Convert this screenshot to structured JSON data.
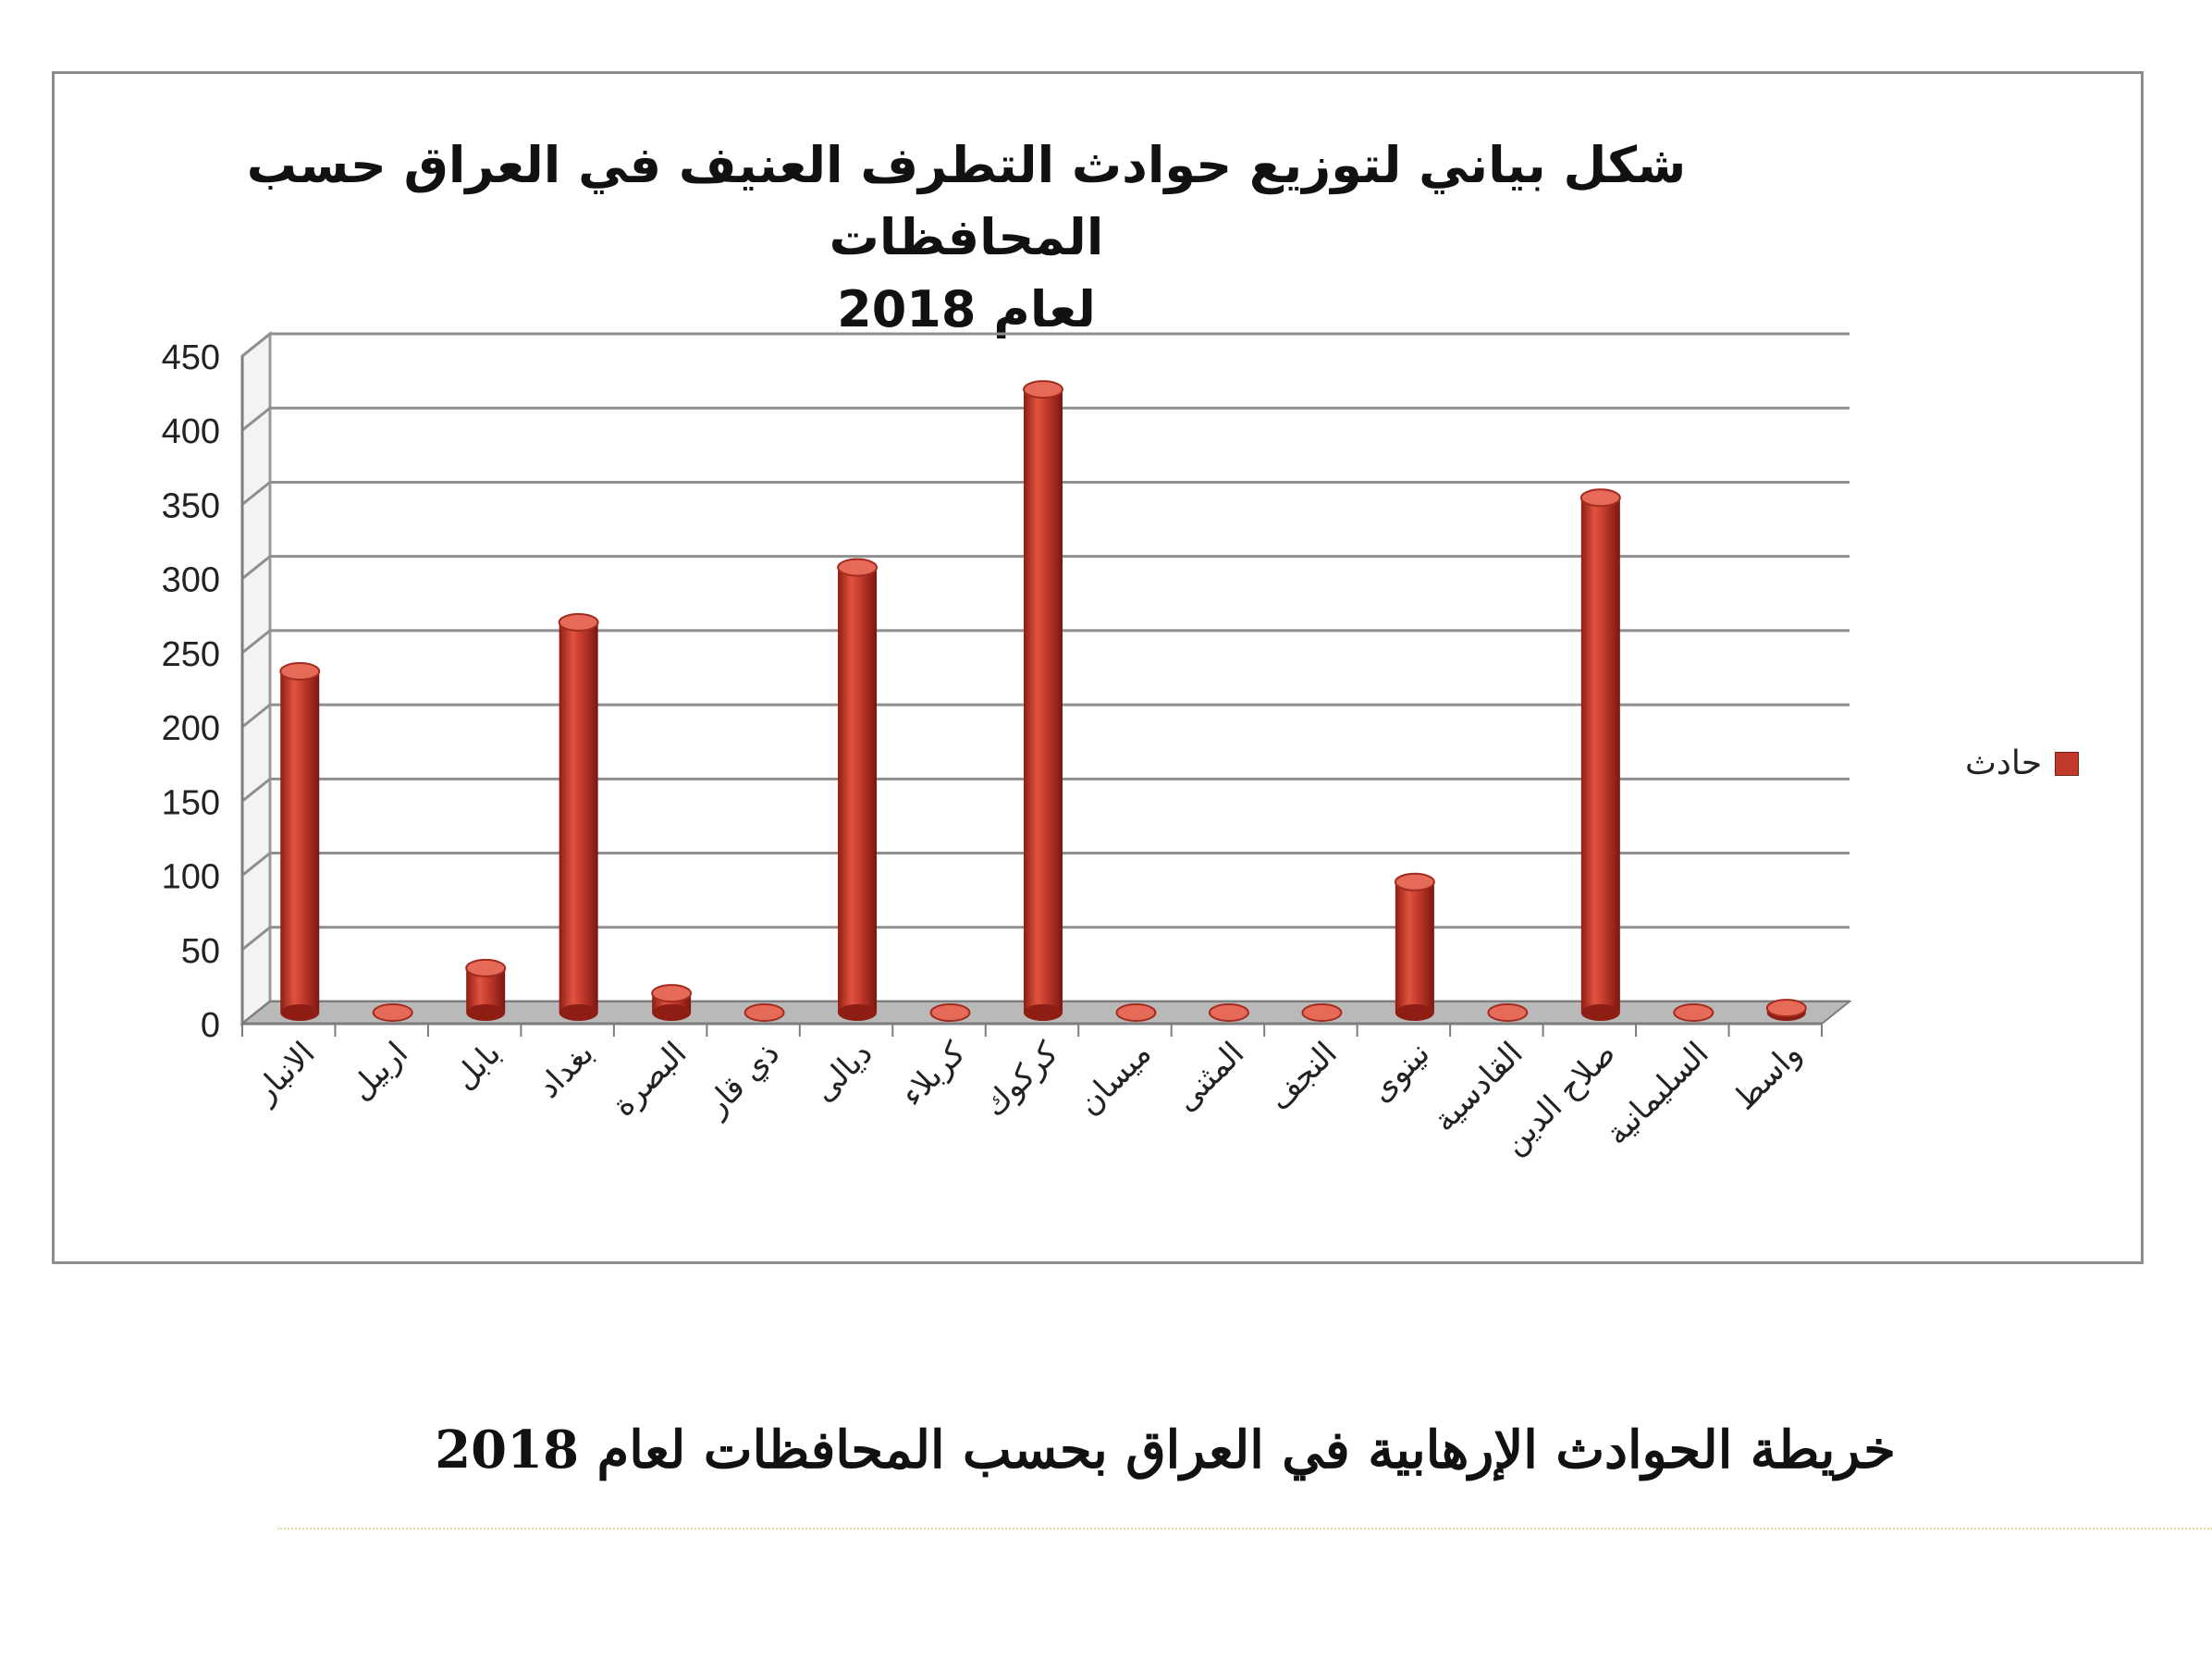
{
  "chart_data": {
    "type": "bar",
    "title_lines": [
      "شكل بياني لتوزيع حوادث التطرف العنيف في العراق حسب المحافظات",
      "لعام 2018"
    ],
    "categories": [
      "الانبار",
      "اربيل",
      "بابل",
      "بغداد",
      "البصرة",
      "ذي قار",
      "ديالى",
      "كربلاء",
      "كركوك",
      "ميسان",
      "المثنى",
      "النجف",
      "نينوى",
      "القادسية",
      "صلاح الدين",
      "السليمانية",
      "واسط"
    ],
    "series": [
      {
        "name": "حادث",
        "values": [
          230,
          0,
          30,
          263,
          13,
          0,
          300,
          0,
          420,
          0,
          0,
          0,
          88,
          0,
          347,
          0,
          3
        ]
      }
    ],
    "yticks": [
      0,
      50,
      100,
      150,
      200,
      250,
      300,
      350,
      400,
      450
    ],
    "ylim": [
      0,
      450
    ],
    "grid": true,
    "legend_position": "right",
    "bar_color": "#c0392b"
  },
  "caption": "خريطة الحوادث الإرهابية في العراق بحسب المحافظات لعام 2018"
}
